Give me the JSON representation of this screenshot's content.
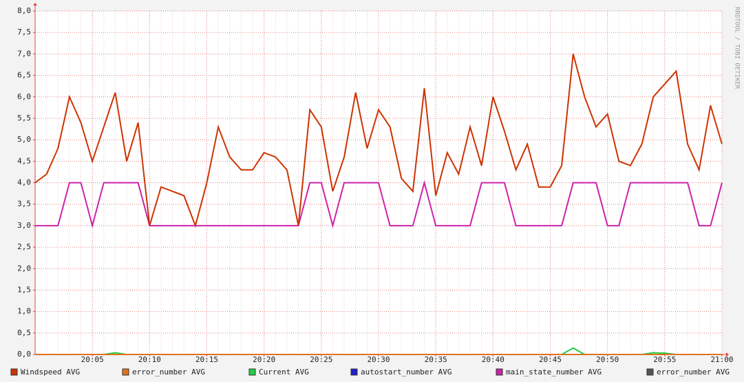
{
  "chart_data": {
    "type": "line",
    "watermark": "RRDTOOL / TOBI OETIKER",
    "x": [
      "20:00",
      "20:01",
      "20:02",
      "20:03",
      "20:04",
      "20:05",
      "20:06",
      "20:07",
      "20:08",
      "20:09",
      "20:10",
      "20:11",
      "20:12",
      "20:13",
      "20:14",
      "20:15",
      "20:16",
      "20:17",
      "20:18",
      "20:19",
      "20:20",
      "20:21",
      "20:22",
      "20:23",
      "20:24",
      "20:25",
      "20:26",
      "20:27",
      "20:28",
      "20:29",
      "20:30",
      "20:31",
      "20:32",
      "20:33",
      "20:34",
      "20:35",
      "20:36",
      "20:37",
      "20:38",
      "20:39",
      "20:40",
      "20:41",
      "20:42",
      "20:43",
      "20:44",
      "20:45",
      "20:46",
      "20:47",
      "20:48",
      "20:49",
      "20:50",
      "20:51",
      "20:52",
      "20:53",
      "20:54",
      "20:55",
      "20:56",
      "20:57",
      "20:58",
      "20:59",
      "21:00"
    ],
    "xticks": [
      "20:05",
      "20:10",
      "20:15",
      "20:20",
      "20:25",
      "20:30",
      "20:35",
      "20:40",
      "20:45",
      "20:50",
      "20:55",
      "21:00"
    ],
    "ylim": [
      0,
      8
    ],
    "yticks": [
      {
        "value": 0,
        "label": "0,0"
      },
      {
        "value": 0.5,
        "label": "0,5"
      },
      {
        "value": 1,
        "label": "1,0"
      },
      {
        "value": 1.5,
        "label": "1,5"
      },
      {
        "value": 2,
        "label": "2,0"
      },
      {
        "value": 2.5,
        "label": "2,5"
      },
      {
        "value": 3,
        "label": "3,0"
      },
      {
        "value": 3.5,
        "label": "3,5"
      },
      {
        "value": 4,
        "label": "4,0"
      },
      {
        "value": 4.5,
        "label": "4,5"
      },
      {
        "value": 5,
        "label": "5,0"
      },
      {
        "value": 5.5,
        "label": "5,5"
      },
      {
        "value": 6,
        "label": "6,0"
      },
      {
        "value": 6.5,
        "label": "6,5"
      },
      {
        "value": 7,
        "label": "7,0"
      },
      {
        "value": 7.5,
        "label": "7,5"
      },
      {
        "value": 8,
        "label": "8,0"
      }
    ],
    "grid": true,
    "series": [
      {
        "name": "Windspeed AVG",
        "color": "#cc3300",
        "values": [
          4.0,
          4.2,
          4.8,
          6.0,
          5.4,
          4.5,
          5.3,
          6.1,
          4.5,
          5.4,
          3.0,
          3.9,
          3.8,
          3.7,
          3.0,
          4.0,
          5.3,
          4.6,
          4.3,
          4.3,
          4.7,
          4.6,
          4.3,
          3.0,
          5.7,
          5.3,
          3.8,
          4.6,
          6.1,
          4.8,
          5.7,
          5.3,
          4.1,
          3.8,
          6.2,
          3.7,
          4.7,
          4.2,
          5.3,
          4.4,
          6.0,
          5.2,
          4.3,
          4.9,
          3.9,
          3.9,
          4.4,
          7.0,
          6.0,
          5.3,
          5.6,
          4.5,
          4.4,
          4.9,
          6.0,
          6.3,
          6.6,
          4.9,
          4.3,
          5.8,
          4.9
        ]
      },
      {
        "name": "error_number AVG",
        "color": "#e07020",
        "values": [
          0,
          0,
          0,
          0,
          0,
          0,
          0,
          0,
          0,
          0,
          0,
          0,
          0,
          0,
          0,
          0,
          0,
          0,
          0,
          0,
          0,
          0,
          0,
          0,
          0,
          0,
          0,
          0,
          0,
          0,
          0,
          0,
          0,
          0,
          0,
          0,
          0,
          0,
          0,
          0,
          0,
          0,
          0,
          0,
          0,
          0,
          0,
          0,
          0,
          0,
          0,
          0,
          0,
          0,
          0,
          0,
          0,
          0,
          0,
          0,
          0
        ]
      },
      {
        "name": "Current AVG",
        "color": "#22cc44",
        "values": [
          0,
          0,
          0,
          0,
          0,
          0,
          0,
          0.04,
          0,
          0,
          0,
          0,
          0,
          0,
          0,
          0,
          0,
          0,
          0,
          0,
          0,
          0,
          0,
          0,
          0,
          0,
          0,
          0,
          0,
          0,
          0,
          0,
          0,
          0,
          0,
          0,
          0,
          0,
          0,
          0,
          0,
          0,
          0,
          0,
          0,
          0,
          0,
          0.15,
          0,
          0,
          0,
          0,
          0,
          0,
          0.04,
          0.03,
          0,
          0,
          0,
          0,
          0
        ]
      },
      {
        "name": "autostart_number AVG",
        "color": "#2222cc",
        "values": [
          0,
          0,
          0,
          0,
          0,
          0,
          0,
          0,
          0,
          0,
          0,
          0,
          0,
          0,
          0,
          0,
          0,
          0,
          0,
          0,
          0,
          0,
          0,
          0,
          0,
          0,
          0,
          0,
          0,
          0,
          0,
          0,
          0,
          0,
          0,
          0,
          0,
          0,
          0,
          0,
          0,
          0,
          0,
          0,
          0,
          0,
          0,
          0,
          0,
          0,
          0,
          0,
          0,
          0,
          0,
          0,
          0,
          0,
          0,
          0,
          0
        ]
      },
      {
        "name": "main_state_number AVG",
        "color": "#cc22aa",
        "values": [
          3,
          3,
          3,
          4,
          4,
          3,
          4,
          4,
          4,
          4,
          3,
          3,
          3,
          3,
          3,
          3,
          3,
          3,
          3,
          3,
          3,
          3,
          3,
          3,
          4,
          4,
          3,
          4,
          4,
          4,
          4,
          3,
          3,
          3,
          4,
          3,
          3,
          3,
          3,
          4,
          4,
          4,
          3,
          3,
          3,
          3,
          3,
          4,
          4,
          4,
          3,
          3,
          4,
          4,
          4,
          4,
          4,
          4,
          3,
          3,
          4
        ]
      },
      {
        "name": "error_number AVG",
        "color": "#555555",
        "values": [
          0,
          0,
          0,
          0,
          0,
          0,
          0,
          0,
          0,
          0,
          0,
          0,
          0,
          0,
          0,
          0,
          0,
          0,
          0,
          0,
          0,
          0,
          0,
          0,
          0,
          0,
          0,
          0,
          0,
          0,
          0,
          0,
          0,
          0,
          0,
          0,
          0,
          0,
          0,
          0,
          0,
          0,
          0,
          0,
          0,
          0,
          0,
          0,
          0,
          0,
          0,
          0,
          0,
          0,
          0,
          0,
          0,
          0,
          0,
          0,
          0
        ]
      }
    ]
  }
}
